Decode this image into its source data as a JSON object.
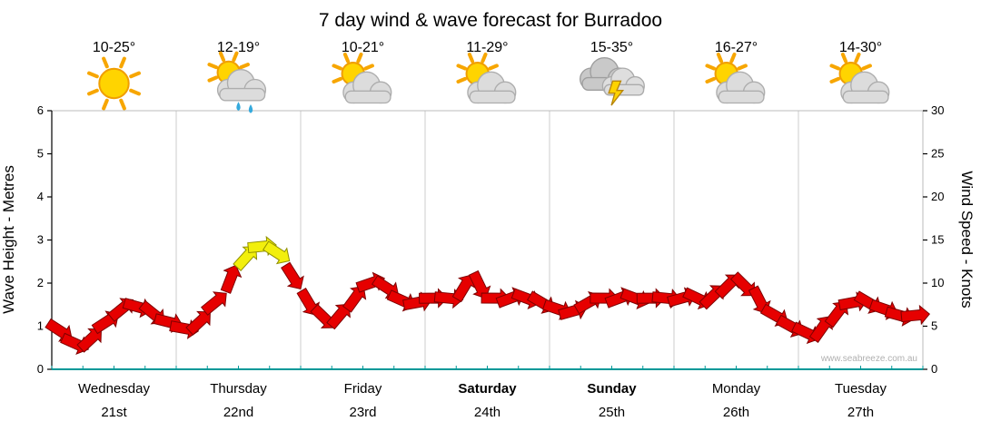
{
  "title": "7 day wind & wave forecast for Burradoo",
  "watermark": "www.seabreeze.com.au",
  "left_axis": {
    "label": "Wave Height - Metres",
    "min": 0,
    "max": 6,
    "ticks": [
      0,
      1,
      2,
      3,
      4,
      5,
      6
    ]
  },
  "right_axis": {
    "label": "Wind Speed - Knots",
    "min": 0,
    "max": 30,
    "ticks": [
      0,
      5,
      10,
      15,
      20,
      25,
      30
    ]
  },
  "days": [
    {
      "name": "Wednesday",
      "date": "21st",
      "temp": "10-25°",
      "icon": "sunny",
      "bold": false
    },
    {
      "name": "Thursday",
      "date": "22nd",
      "temp": "12-19°",
      "icon": "sun-cloud-rain",
      "bold": false
    },
    {
      "name": "Friday",
      "date": "23rd",
      "temp": "10-21°",
      "icon": "sun-cloud",
      "bold": false
    },
    {
      "name": "Saturday",
      "date": "24th",
      "temp": "11-29°",
      "icon": "sun-cloud",
      "bold": true
    },
    {
      "name": "Sunday",
      "date": "25th",
      "temp": "15-35°",
      "icon": "storm",
      "bold": true
    },
    {
      "name": "Monday",
      "date": "26th",
      "temp": "16-27°",
      "icon": "sun-cloud",
      "bold": false
    },
    {
      "name": "Tuesday",
      "date": "27th",
      "temp": "14-30°",
      "icon": "sun-cloud",
      "bold": false
    }
  ],
  "chart_data": {
    "type": "line",
    "title": "7 day wind & wave forecast for Burradoo",
    "xlabel": "",
    "left_ylabel": "Wave Height - Metres",
    "right_ylabel": "Wind Speed - Knots",
    "left_ylim": [
      0,
      6
    ],
    "right_ylim": [
      0,
      30
    ],
    "left_ticks": [
      0,
      1,
      2,
      3,
      4,
      5,
      6
    ],
    "right_ticks": [
      0,
      5,
      10,
      15,
      20,
      25,
      30
    ],
    "x_axis": "days, 0 = start of Wednesday 21st, 7 = end of Tuesday 27th",
    "x_start": 0,
    "x_step": 0.125,
    "series": [
      {
        "name": "Wind Speed",
        "units": "knots",
        "values": [
          5.5,
          3.5,
          2.5,
          4.5,
          6.5,
          7.5,
          7,
          6,
          5,
          4.5,
          6.5,
          9,
          12,
          14,
          14.5,
          12.5,
          9,
          6.5,
          5.5,
          7,
          9.5,
          10.5,
          8.5,
          7.5,
          8,
          8.5,
          8,
          11,
          8.5,
          8,
          8.5,
          8,
          7.5,
          6.5,
          7,
          8.5,
          8,
          8.5,
          8,
          8.5,
          8,
          8.5,
          8,
          9,
          10.5,
          9,
          7,
          5.5,
          4.5,
          4,
          5.5,
          7.5,
          8,
          7.5,
          6.5,
          6,
          6.5
        ]
      }
    ],
    "marker_style": "wind arrows",
    "yellow_threshold_knots": 12,
    "arrow_colors": {
      "red": "#e60000",
      "yellow": "#f2ef0c"
    },
    "grid": "vertical day separators",
    "legend": "none"
  },
  "colors": {
    "arrow_red": "#e60000",
    "arrow_red_stroke": "#7e0000",
    "arrow_yellow": "#f2ef0c",
    "arrow_yellow_stroke": "#8f8f00",
    "bottom_axis": "#009898",
    "gridline": "#cccccc",
    "date_gray": "#8c8c8c"
  }
}
